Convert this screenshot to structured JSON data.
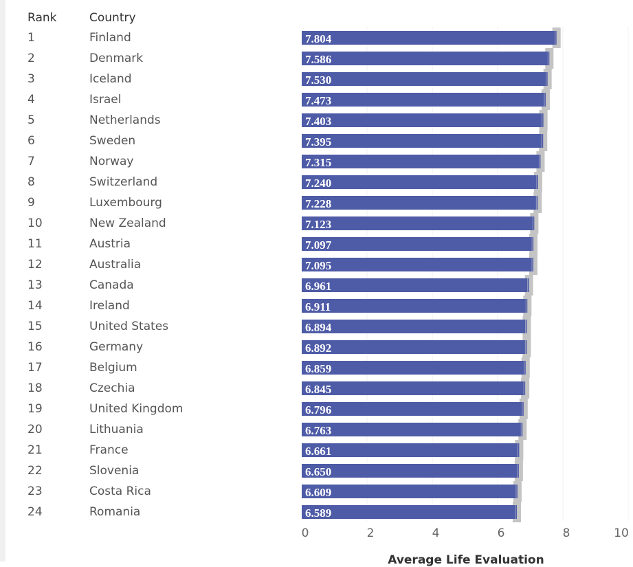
{
  "chart_data": {
    "type": "bar",
    "orientation": "horizontal",
    "columns": [
      "Rank",
      "Country"
    ],
    "ranks": [
      1,
      2,
      3,
      4,
      5,
      6,
      7,
      8,
      9,
      10,
      11,
      12,
      13,
      14,
      15,
      16,
      17,
      18,
      19,
      20,
      21,
      22,
      23,
      24
    ],
    "categories": [
      "Finland",
      "Denmark",
      "Iceland",
      "Israel",
      "Netherlands",
      "Sweden",
      "Norway",
      "Switzerland",
      "Luxembourg",
      "New Zealand",
      "Austria",
      "Australia",
      "Canada",
      "Ireland",
      "United States",
      "Germany",
      "Belgium",
      "Czechia",
      "United Kingdom",
      "Lithuania",
      "France",
      "Slovenia",
      "Costa Rica",
      "Romania"
    ],
    "values": [
      7.804,
      7.586,
      7.53,
      7.473,
      7.403,
      7.395,
      7.315,
      7.24,
      7.228,
      7.123,
      7.097,
      7.095,
      6.961,
      6.911,
      6.894,
      6.892,
      6.859,
      6.845,
      6.796,
      6.763,
      6.661,
      6.65,
      6.609,
      6.589
    ],
    "value_labels": [
      "7.804",
      "7.586",
      "7.530",
      "7.473",
      "7.403",
      "7.395",
      "7.315",
      "7.240",
      "7.228",
      "7.123",
      "7.097",
      "7.095",
      "6.961",
      "6.911",
      "6.894",
      "6.892",
      "6.859",
      "6.845",
      "6.796",
      "6.763",
      "6.661",
      "6.650",
      "6.609",
      "6.589"
    ],
    "xlabel": "Average Life Evaluation",
    "xlim": [
      0,
      10
    ],
    "xticks": [
      "0",
      "2",
      "4",
      "6",
      "8",
      "10"
    ],
    "grid": true,
    "bar_color": "#4e5ba6",
    "interval_color": "#c4c4c4"
  }
}
